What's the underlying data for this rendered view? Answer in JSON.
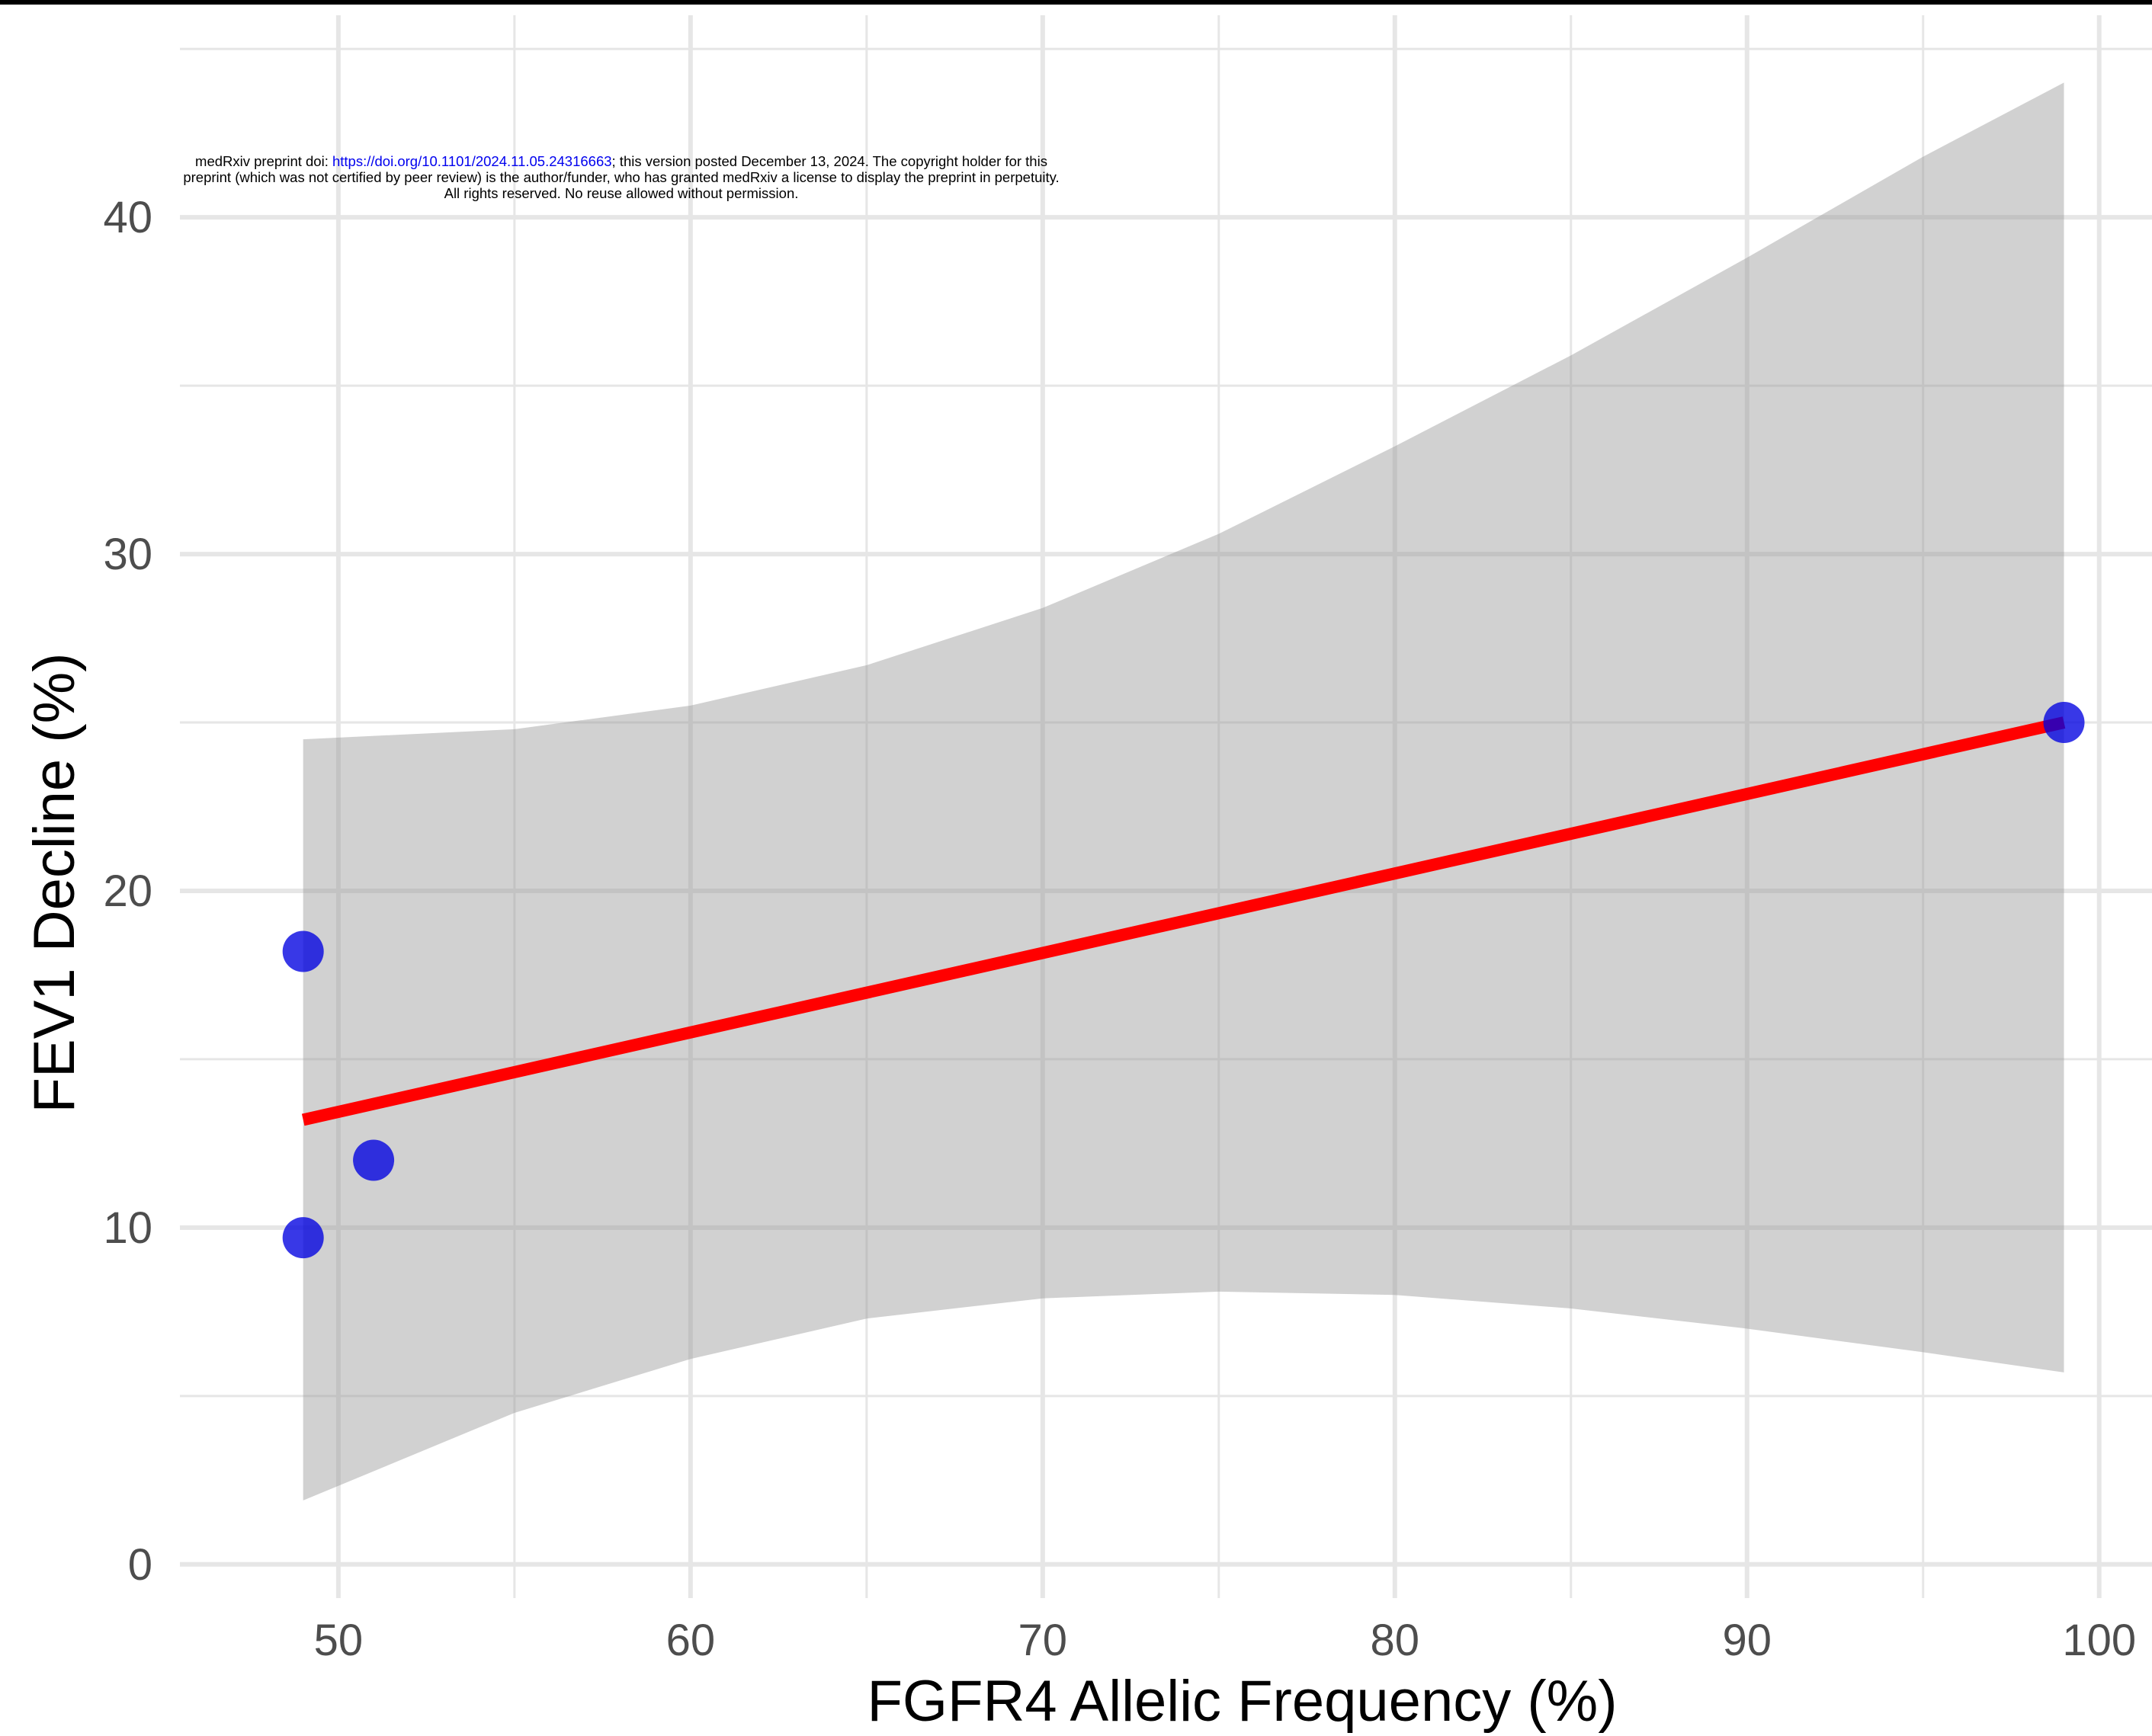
{
  "notice": {
    "prefix": "medRxiv preprint doi: ",
    "link": "https://doi.org/10.1101/2024.11.05.24316663",
    "suffix": "; this version posted December 13, 2024. The copyright holder for this",
    "line2": "preprint (which was not certified by peer review) is the author/funder, who has granted medRxiv a license to display the preprint in perpetuity.",
    "line3": "All rights reserved. No reuse allowed without permission."
  },
  "chart_data": {
    "type": "scatter",
    "title": "",
    "xlabel": "FGFR4 Allelic Frequency (%)",
    "ylabel": "FEV1 Decline (%)",
    "xlim": [
      45.5,
      101.5
    ],
    "ylim": [
      -1,
      46
    ],
    "x_ticks": [
      50,
      60,
      70,
      80,
      90,
      100
    ],
    "y_ticks": [
      0,
      10,
      20,
      30,
      40
    ],
    "grid": true,
    "points": [
      {
        "x": 49,
        "y": 18.2
      },
      {
        "x": 49,
        "y": 9.7
      },
      {
        "x": 51,
        "y": 12.0
      },
      {
        "x": 99,
        "y": 25.0
      }
    ],
    "fit_line": {
      "x": [
        49,
        99
      ],
      "y": [
        13.2,
        25.0
      ]
    },
    "confidence_band": {
      "x": [
        49,
        55,
        60,
        65,
        70,
        75,
        80,
        85,
        90,
        95,
        99
      ],
      "upper": [
        24.5,
        24.8,
        25.5,
        26.7,
        28.4,
        30.6,
        33.2,
        35.9,
        38.8,
        41.8,
        44.0
      ],
      "lower": [
        1.9,
        4.5,
        6.1,
        7.3,
        7.9,
        8.1,
        8.0,
        7.6,
        7.0,
        6.3,
        5.7
      ]
    },
    "colors": {
      "points": "#0000e0",
      "fit_line": "#ff0000",
      "band": "#999999",
      "grid": "#e6e6e6"
    }
  }
}
